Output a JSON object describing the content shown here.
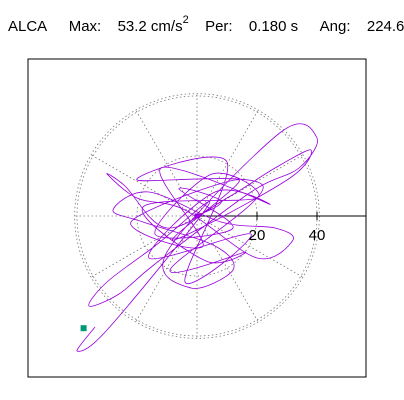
{
  "header": {
    "station": "ALCA",
    "max_label": "Max:",
    "max_value": "53.2 cm/s",
    "max_exp": "2",
    "per_label": "Per:",
    "per_value": "0.180 s",
    "ang_label": "Ang:",
    "ang_value": "224.6"
  },
  "chart_data": {
    "type": "scatter",
    "subtype": "polar particle-motion trace",
    "title": "",
    "xlabel": "",
    "ylabel": "",
    "radial_ticks": [
      20,
      40
    ],
    "radial_tick_labels": [
      "20",
      "40"
    ],
    "radial_range": [
      0,
      53.2
    ],
    "angular_gridlines_deg": [
      0,
      30,
      60,
      90,
      120,
      150,
      180,
      210,
      240,
      270,
      300,
      330
    ],
    "grid": true,
    "grid_style": "dotted",
    "trace_color": "#9900dd",
    "end_marker_color": "#009977",
    "peak": {
      "amplitude": 53.2,
      "angle_deg": 224.6
    },
    "series": [
      {
        "values": [
          [
            0,
            0
          ],
          [
            8,
            5
          ],
          [
            -6,
            9
          ],
          [
            12,
            -4
          ],
          [
            -14,
            -6
          ],
          [
            5,
            14
          ],
          [
            20,
            6
          ],
          [
            -18,
            3
          ],
          [
            3,
            -15
          ],
          [
            16,
            -12
          ],
          [
            -9,
            -18
          ],
          [
            22,
            10
          ],
          [
            -20,
            12
          ],
          [
            10,
            18
          ],
          [
            -4,
            -22
          ],
          [
            18,
            -6
          ],
          [
            -16,
            -14
          ],
          [
            6,
            8
          ],
          [
            24,
            4
          ],
          [
            -12,
            16
          ],
          [
            2,
            -10
          ],
          [
            -22,
            -2
          ],
          [
            14,
            12
          ],
          [
            -8,
            -8
          ],
          [
            30,
            12
          ],
          [
            38,
            22
          ],
          [
            26,
            16
          ],
          [
            10,
            6
          ],
          [
            -10,
            -4
          ],
          [
            -24,
            10
          ],
          [
            -30,
            14
          ],
          [
            -20,
            6
          ],
          [
            -4,
            2
          ],
          [
            20,
            -14
          ],
          [
            32,
            -8
          ],
          [
            26,
            -4
          ],
          [
            8,
            -2
          ],
          [
            -16,
            8
          ],
          [
            -28,
            2
          ],
          [
            -18,
            -2
          ],
          [
            6,
            -10
          ],
          [
            12,
            -18
          ],
          [
            -2,
            -24
          ],
          [
            -10,
            -12
          ],
          [
            28,
            28
          ],
          [
            40,
            26
          ],
          [
            34,
            16
          ],
          [
            18,
            8
          ],
          [
            -14,
            -16
          ],
          [
            -26,
            -26
          ],
          [
            -36,
            -30
          ],
          [
            -30,
            -22
          ],
          [
            -14,
            -10
          ],
          [
            4,
            4
          ],
          [
            -30,
            -38
          ],
          [
            -40,
            -45
          ],
          [
            -34,
            -37
          ]
        ]
      }
    ],
    "end_point": [
      -37.8,
      -37.4
    ]
  }
}
